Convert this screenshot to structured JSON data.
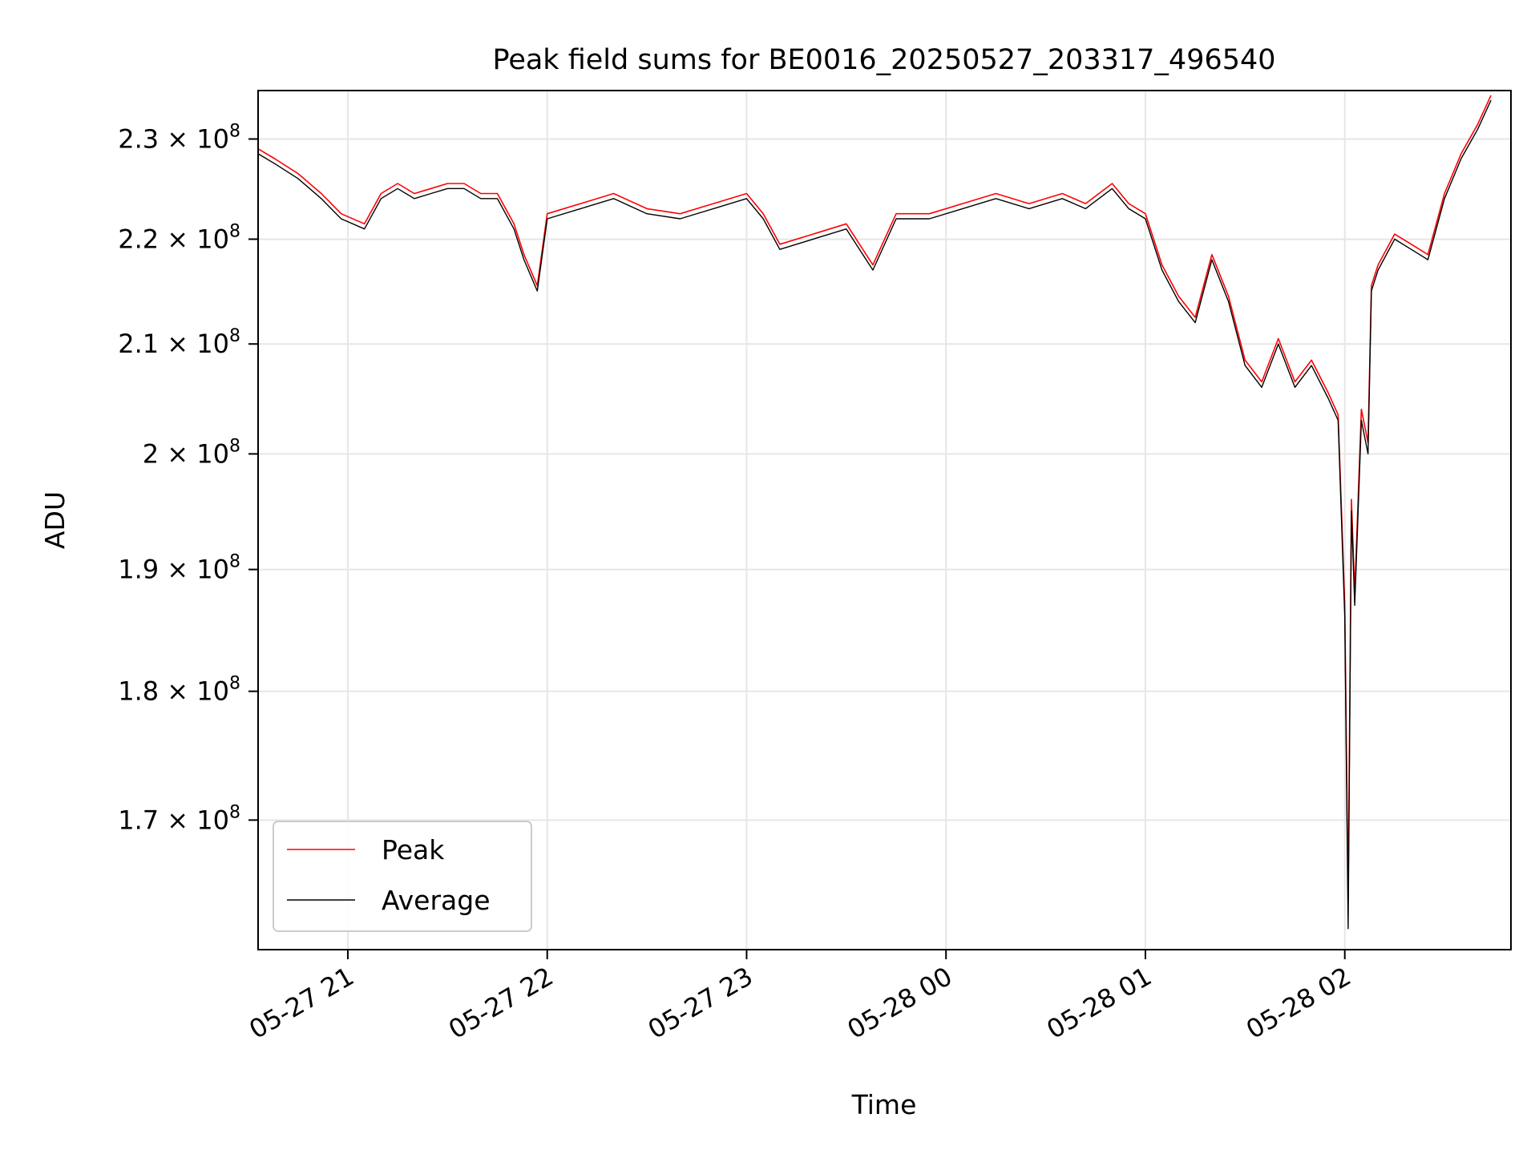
{
  "chart_data": {
    "type": "line",
    "title": "Peak field sums for BE0016_20250527_203317_496540",
    "xlabel": "Time",
    "ylabel": "ADU",
    "y_scale": "log",
    "ylim": [
      160500000,
      235000000
    ],
    "xlim": [
      "2025-05-27 20:33",
      "2025-05-28 02:50"
    ],
    "x_ticks": [
      {
        "value": "2025-05-27 21:00",
        "label": "05-27 21"
      },
      {
        "value": "2025-05-27 22:00",
        "label": "05-27 22"
      },
      {
        "value": "2025-05-27 23:00",
        "label": "05-27 23"
      },
      {
        "value": "2025-05-28 00:00",
        "label": "05-28 00"
      },
      {
        "value": "2025-05-28 01:00",
        "label": "05-28 01"
      },
      {
        "value": "2025-05-28 02:00",
        "label": "05-28 02"
      }
    ],
    "y_ticks": [
      {
        "value": 230000000,
        "mantissa": "2.3",
        "exponent": "8"
      },
      {
        "value": 220000000,
        "mantissa": "2.2",
        "exponent": "8"
      },
      {
        "value": 210000000,
        "mantissa": "2.1",
        "exponent": "8"
      },
      {
        "value": 200000000,
        "mantissa": "2",
        "exponent": "8"
      },
      {
        "value": 190000000,
        "mantissa": "1.9",
        "exponent": "8"
      },
      {
        "value": 180000000,
        "mantissa": "1.8",
        "exponent": "8"
      },
      {
        "value": 170000000,
        "mantissa": "1.7",
        "exponent": "8"
      }
    ],
    "grid": true,
    "legend_position": "lower-left",
    "series": [
      {
        "name": "Peak",
        "color": "#ff0000"
      },
      {
        "name": "Average",
        "color": "#000000"
      }
    ],
    "x": [
      "2025-05-27 20:33",
      "2025-05-27 20:38",
      "2025-05-27 20:45",
      "2025-05-27 20:52",
      "2025-05-27 20:58",
      "2025-05-27 21:05",
      "2025-05-27 21:10",
      "2025-05-27 21:15",
      "2025-05-27 21:20",
      "2025-05-27 21:25",
      "2025-05-27 21:30",
      "2025-05-27 21:35",
      "2025-05-27 21:40",
      "2025-05-27 21:45",
      "2025-05-27 21:50",
      "2025-05-27 21:53",
      "2025-05-27 21:57",
      "2025-05-27 22:00",
      "2025-05-27 22:10",
      "2025-05-27 22:20",
      "2025-05-27 22:30",
      "2025-05-27 22:40",
      "2025-05-27 22:50",
      "2025-05-27 23:00",
      "2025-05-27 23:05",
      "2025-05-27 23:10",
      "2025-05-27 23:20",
      "2025-05-27 23:30",
      "2025-05-27 23:38",
      "2025-05-27 23:45",
      "2025-05-27 23:55",
      "2025-05-28 00:05",
      "2025-05-28 00:15",
      "2025-05-28 00:25",
      "2025-05-28 00:35",
      "2025-05-28 00:42",
      "2025-05-28 00:50",
      "2025-05-28 00:55",
      "2025-05-28 01:00",
      "2025-05-28 01:05",
      "2025-05-28 01:10",
      "2025-05-28 01:15",
      "2025-05-28 01:20",
      "2025-05-28 01:25",
      "2025-05-28 01:30",
      "2025-05-28 01:35",
      "2025-05-28 01:40",
      "2025-05-28 01:45",
      "2025-05-28 01:50",
      "2025-05-28 01:55",
      "2025-05-28 01:58",
      "2025-05-28 02:00",
      "2025-05-28 02:01",
      "2025-05-28 02:02",
      "2025-05-28 02:03",
      "2025-05-28 02:05",
      "2025-05-28 02:07",
      "2025-05-28 02:08",
      "2025-05-28 02:10",
      "2025-05-28 02:15",
      "2025-05-28 02:20",
      "2025-05-28 02:25",
      "2025-05-28 02:30",
      "2025-05-28 02:35",
      "2025-05-28 02:40",
      "2025-05-28 02:44"
    ],
    "y_average": [
      228500000,
      227500000,
      226000000,
      224000000,
      222000000,
      221000000,
      224000000,
      225000000,
      224000000,
      224500000,
      225000000,
      225000000,
      224000000,
      224000000,
      221000000,
      218000000,
      215000000,
      222000000,
      223000000,
      224000000,
      222500000,
      222000000,
      223000000,
      224000000,
      222000000,
      219000000,
      220000000,
      221000000,
      217000000,
      222000000,
      222000000,
      223000000,
      224000000,
      223000000,
      224000000,
      223000000,
      225000000,
      223000000,
      222000000,
      217000000,
      214000000,
      212000000,
      218000000,
      214000000,
      208000000,
      206000000,
      210000000,
      206000000,
      208000000,
      205000000,
      203000000,
      186000000,
      162000000,
      195000000,
      187000000,
      203000000,
      200000000,
      215000000,
      217000000,
      220000000,
      219000000,
      218000000,
      224000000,
      228000000,
      231000000,
      234000000
    ],
    "y_peak": [
      229000000,
      228000000,
      226500000,
      224500000,
      222500000,
      221500000,
      224500000,
      225500000,
      224500000,
      225000000,
      225500000,
      225500000,
      224500000,
      224500000,
      221500000,
      218500000,
      215500000,
      222500000,
      223500000,
      224500000,
      223000000,
      222500000,
      223500000,
      224500000,
      222500000,
      219500000,
      220500000,
      221500000,
      217500000,
      222500000,
      222500000,
      223500000,
      224500000,
      223500000,
      224500000,
      223500000,
      225500000,
      223500000,
      222500000,
      217500000,
      214500000,
      212500000,
      218500000,
      214500000,
      208500000,
      206500000,
      210500000,
      206500000,
      208500000,
      205500000,
      203500000,
      187000000,
      164000000,
      196000000,
      188000000,
      204000000,
      201000000,
      215500000,
      217500000,
      220500000,
      219500000,
      218500000,
      224500000,
      228500000,
      231500000,
      234500000
    ]
  }
}
